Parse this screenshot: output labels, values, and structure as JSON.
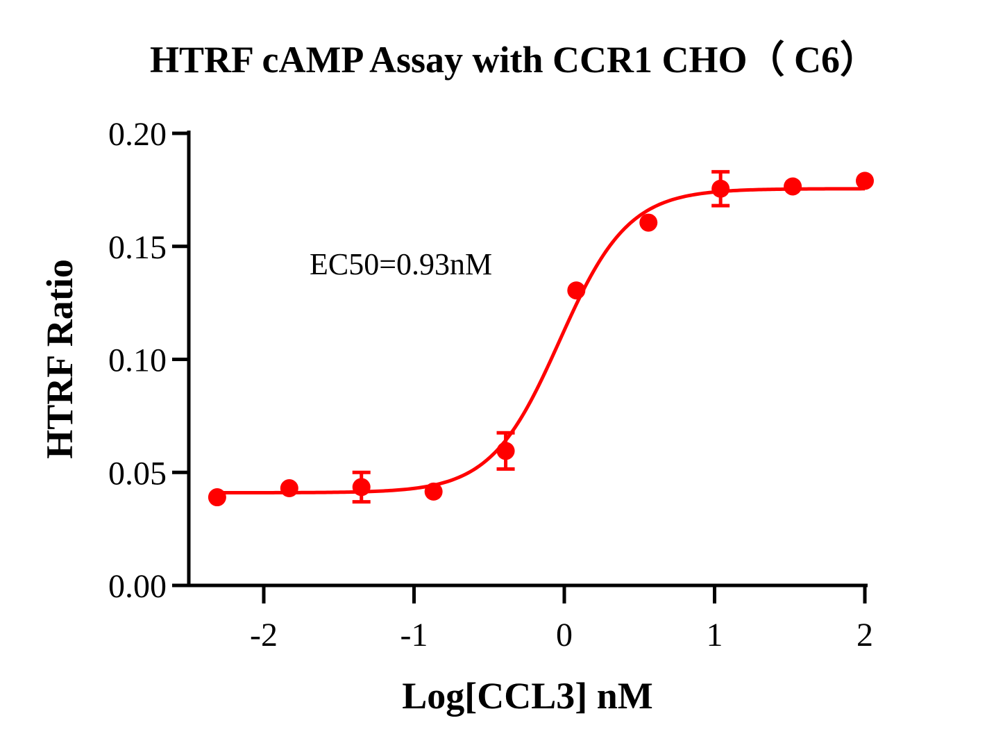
{
  "chart_data": {
    "type": "scatter",
    "title": "HTRF cAMP Assay with CCR1 CHO（ C6）",
    "xlabel": "Log[CCL3] nM",
    "ylabel": "HTRF Ratio",
    "xlim": [
      -2.5,
      2.0
    ],
    "ylim": [
      0,
      0.2
    ],
    "xticks": [
      -2,
      -1,
      0,
      1,
      2
    ],
    "xtick_labels": [
      "-2",
      "-1",
      "0",
      "1",
      "2"
    ],
    "yticks": [
      0.0,
      0.05,
      0.1,
      0.15,
      0.2
    ],
    "ytick_labels": [
      "0.00",
      "0.05",
      "0.10",
      "0.15",
      "0.20"
    ],
    "grid": false,
    "color": "#ff0000",
    "annotation": "EC50=0.93nM",
    "series": [
      {
        "points": [
          {
            "x": -2.31,
            "y": 0.039,
            "err": 0.0
          },
          {
            "x": -1.83,
            "y": 0.043,
            "err": 0.0
          },
          {
            "x": -1.35,
            "y": 0.0435,
            "err": 0.0065
          },
          {
            "x": -0.87,
            "y": 0.0415,
            "err": 0.0
          },
          {
            "x": -0.39,
            "y": 0.0595,
            "err": 0.008
          },
          {
            "x": 0.08,
            "y": 0.1305,
            "err": 0.0
          },
          {
            "x": 0.56,
            "y": 0.1605,
            "err": 0.0
          },
          {
            "x": 1.04,
            "y": 0.1755,
            "err": 0.0075
          },
          {
            "x": 1.52,
            "y": 0.1765,
            "err": 0.0
          },
          {
            "x": 2.0,
            "y": 0.179,
            "err": 0.0
          }
        ],
        "fit": {
          "model": "four-parameter logistic",
          "bottom": 0.041,
          "top": 0.1755,
          "logEC50": -0.0315,
          "hill": 1.9,
          "x_range": [
            -2.31,
            2.0
          ]
        }
      }
    ]
  }
}
